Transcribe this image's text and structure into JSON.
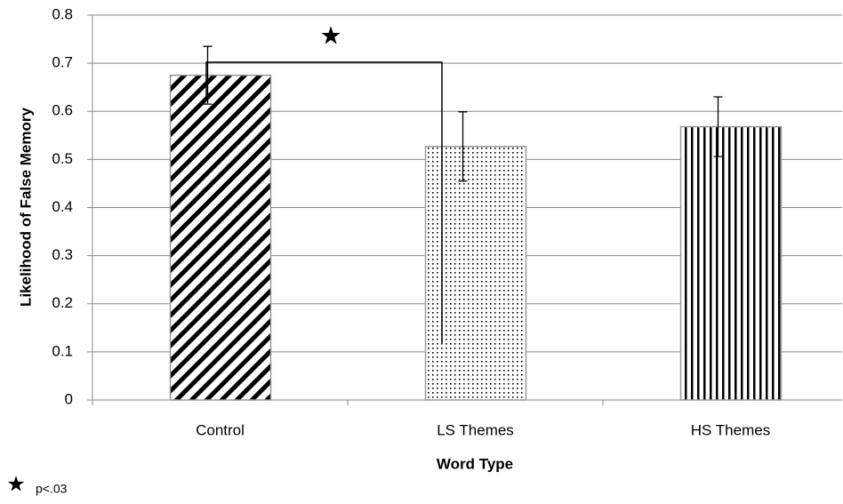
{
  "chart_data": {
    "type": "bar",
    "categories": [
      "Control",
      "LS Themes",
      "HS Themes"
    ],
    "values": [
      0.675,
      0.527,
      0.568
    ],
    "errors": [
      0.06,
      0.072,
      0.062
    ],
    "patterns": [
      "diagonal",
      "dots",
      "vertical"
    ],
    "color": "#000000",
    "x_label": "Word Type",
    "y_label": "Likelihood of False Memory",
    "ylim": [
      0,
      0.8
    ],
    "yticks": [
      0,
      0.1,
      0.2,
      0.3,
      0.4,
      0.5,
      0.6,
      0.7,
      0.8
    ],
    "grid": true,
    "significance_marker": "★",
    "significance_note": "p<.03"
  }
}
